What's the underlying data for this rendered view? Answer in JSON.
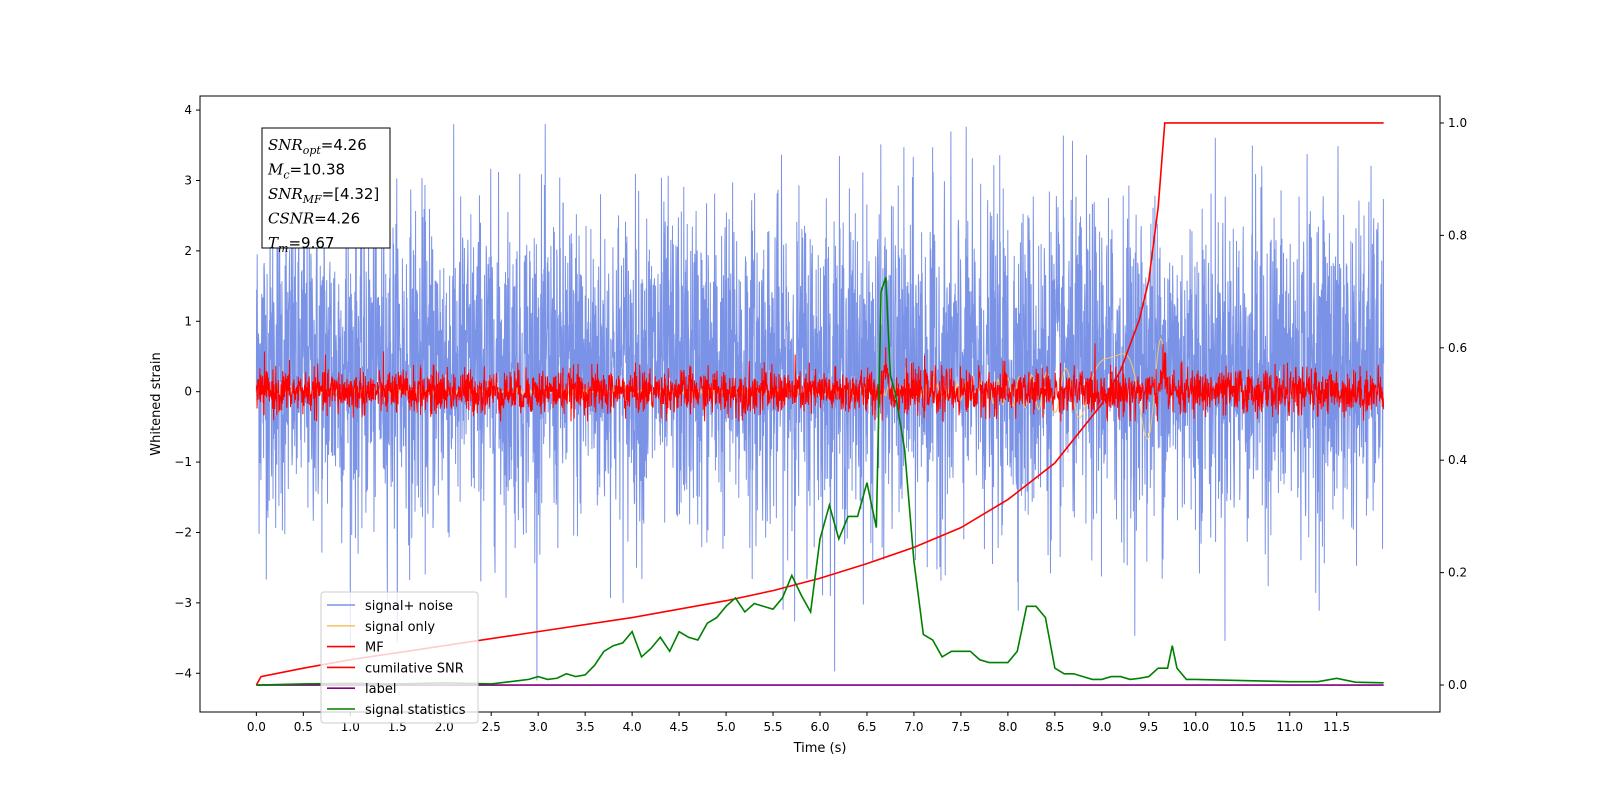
{
  "chart_data": {
    "type": "line",
    "title": "",
    "xlabel": "Time (s)",
    "ylabel": "Whitened strain",
    "y2label": "",
    "xlim": [
      -0.6,
      12.6
    ],
    "ylim": [
      -4.55,
      4.2
    ],
    "y2lim": [
      -0.048,
      1.048
    ],
    "x_ticks": [
      0.0,
      0.5,
      1.0,
      1.5,
      2.0,
      2.5,
      3.0,
      3.5,
      4.0,
      4.5,
      5.0,
      5.5,
      6.0,
      6.5,
      7.0,
      7.5,
      8.0,
      8.5,
      9.0,
      9.5,
      10.0,
      10.5,
      11.0,
      11.5
    ],
    "x_tick_labels": [
      "0.0",
      "0.5",
      "1.0",
      "1.5",
      "2.0",
      "2.5",
      "3.0",
      "3.5",
      "4.0",
      "4.5",
      "5.0",
      "5.5",
      "6.0",
      "6.5",
      "7.0",
      "7.5",
      "8.0",
      "8.5",
      "9.0",
      "9.5",
      "10.0",
      "10.5",
      "11.0",
      "11.5"
    ],
    "y_ticks": [
      4,
      3,
      2,
      1,
      0,
      -1,
      -2,
      -3,
      -4
    ],
    "y_tick_labels": [
      "4",
      "3",
      "2",
      "1",
      "0",
      "−1",
      "−2",
      "−3",
      "−4"
    ],
    "y2_ticks": [
      1.0,
      0.8,
      0.6,
      0.4,
      0.2,
      0.0
    ],
    "y2_tick_labels": [
      "1.0",
      "0.8",
      "0.6",
      "0.4",
      "0.2",
      "0.0"
    ],
    "legend_position": "lower-left",
    "grid": false,
    "annotation": {
      "lines": [
        {
          "base": "SNR",
          "sub": "opt",
          "value": "=4.26"
        },
        {
          "base": "M",
          "sub": "c",
          "value": "=10.38"
        },
        {
          "base": "SNR",
          "sub": "MF",
          "value": "=[4.32]"
        },
        {
          "base": "CSNR",
          "sub": "",
          "value": "=4.26"
        },
        {
          "base": "T",
          "sub": "m",
          "value": "=9.67"
        }
      ]
    },
    "series": [
      {
        "name": "signal+ noise",
        "axis": "left",
        "color": "#7b93e6",
        "style": "noise",
        "x_range": [
          0.0,
          12.0
        ],
        "typical_range": [
          -1.9,
          2.6
        ],
        "extremes": [
          -4.1,
          3.8
        ]
      },
      {
        "name": "signal only",
        "axis": "left",
        "color": "#f5c76e",
        "style": "chirp",
        "x_range": [
          0.0,
          9.67
        ],
        "amplitude_range": [
          -0.55,
          0.8
        ]
      },
      {
        "name": "MF",
        "axis": "left",
        "color": "#ff0000",
        "style": "noise",
        "x_range": [
          0.0,
          12.0
        ],
        "typical_range": [
          -0.4,
          0.4
        ],
        "peaks": [
          {
            "x": 6.7,
            "y": 0.8
          },
          {
            "x": 9.67,
            "y": 0.78
          }
        ]
      },
      {
        "name": "cumilative SNR",
        "axis": "right",
        "color": "#ff0000",
        "style": "line",
        "x": [
          0.0,
          0.05,
          0.5,
          1.0,
          2.0,
          3.0,
          4.0,
          5.0,
          5.5,
          6.0,
          6.5,
          7.0,
          7.5,
          8.0,
          8.5,
          9.0,
          9.2,
          9.4,
          9.5,
          9.6,
          9.67,
          12.0
        ],
        "values": [
          0.0,
          0.015,
          0.03,
          0.045,
          0.07,
          0.095,
          0.12,
          0.15,
          0.168,
          0.19,
          0.216,
          0.245,
          0.28,
          0.33,
          0.395,
          0.5,
          0.56,
          0.65,
          0.72,
          0.85,
          1.0,
          1.0
        ]
      },
      {
        "name": "label",
        "axis": "right",
        "color": "#800080",
        "style": "line",
        "x": [
          0.0,
          12.0
        ],
        "values": [
          0.0,
          0.0
        ]
      },
      {
        "name": "signal statistics",
        "axis": "right",
        "color": "#008000",
        "style": "line",
        "x": [
          0.0,
          0.5,
          1.0,
          1.5,
          2.0,
          2.5,
          2.8,
          2.9,
          3.0,
          3.1,
          3.2,
          3.3,
          3.4,
          3.5,
          3.6,
          3.7,
          3.8,
          3.9,
          4.0,
          4.1,
          4.2,
          4.3,
          4.4,
          4.5,
          4.6,
          4.7,
          4.8,
          4.9,
          5.0,
          5.1,
          5.2,
          5.3,
          5.4,
          5.5,
          5.6,
          5.7,
          5.8,
          5.9,
          6.0,
          6.1,
          6.2,
          6.3,
          6.4,
          6.5,
          6.6,
          6.65,
          6.7,
          6.75,
          6.8,
          6.9,
          7.0,
          7.1,
          7.2,
          7.3,
          7.4,
          7.5,
          7.6,
          7.7,
          7.8,
          7.9,
          8.0,
          8.1,
          8.2,
          8.3,
          8.4,
          8.5,
          8.6,
          8.7,
          8.8,
          8.9,
          9.0,
          9.1,
          9.2,
          9.3,
          9.4,
          9.5,
          9.6,
          9.7,
          9.75,
          9.8,
          9.9,
          10.0,
          10.5,
          11.0,
          11.3,
          11.5,
          11.7,
          12.0
        ],
        "values": [
          0.0,
          0.002,
          0.003,
          0.002,
          0.004,
          0.002,
          0.008,
          0.01,
          0.015,
          0.01,
          0.012,
          0.02,
          0.015,
          0.018,
          0.035,
          0.06,
          0.07,
          0.075,
          0.095,
          0.05,
          0.065,
          0.085,
          0.06,
          0.095,
          0.085,
          0.08,
          0.11,
          0.12,
          0.14,
          0.155,
          0.13,
          0.145,
          0.14,
          0.135,
          0.155,
          0.195,
          0.16,
          0.13,
          0.26,
          0.32,
          0.26,
          0.3,
          0.3,
          0.36,
          0.28,
          0.7,
          0.725,
          0.55,
          0.52,
          0.42,
          0.22,
          0.09,
          0.08,
          0.05,
          0.06,
          0.06,
          0.06,
          0.045,
          0.04,
          0.04,
          0.04,
          0.06,
          0.14,
          0.14,
          0.12,
          0.03,
          0.02,
          0.02,
          0.015,
          0.01,
          0.01,
          0.015,
          0.015,
          0.01,
          0.012,
          0.015,
          0.03,
          0.03,
          0.07,
          0.03,
          0.01,
          0.01,
          0.008,
          0.006,
          0.006,
          0.012,
          0.005,
          0.004
        ]
      }
    ]
  }
}
